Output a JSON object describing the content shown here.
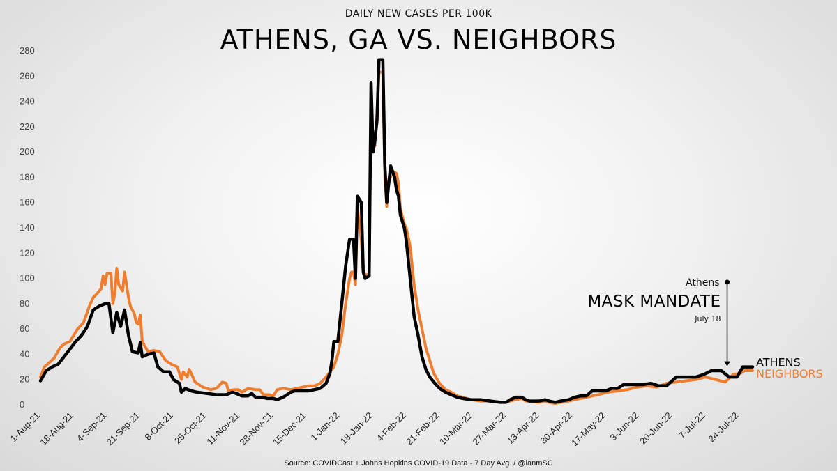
{
  "chart_data": {
    "type": "line",
    "subtitle": "DAILY NEW CASES PER 100K",
    "title": "ATHENS, GA VS. NEIGHBORS",
    "ylim": [
      0,
      280
    ],
    "yticks": [
      0,
      20,
      40,
      60,
      80,
      100,
      120,
      140,
      160,
      180,
      200,
      220,
      240,
      260,
      280
    ],
    "x_start": "1-Aug-21",
    "x_end": "31-Jul-22",
    "xticks": [
      "1-Aug-21",
      "18-Aug-21",
      "4-Sep-21",
      "21-Sep-21",
      "8-Oct-21",
      "25-Oct-21",
      "11-Nov-21",
      "28-Nov-21",
      "15-Dec-21",
      "1-Jan-22",
      "18-Jan-22",
      "4-Feb-22",
      "21-Feb-22",
      "10-Mar-22",
      "27-Mar-22",
      "13-Apr-22",
      "30-Apr-22",
      "17-May-22",
      "3-Jun-22",
      "20-Jun-22",
      "7-Jul-22",
      "24-Jul-22"
    ],
    "series": [
      {
        "name": "ATHENS",
        "color": "#000000",
        "points": [
          [
            0,
            19
          ],
          [
            3,
            27
          ],
          [
            6,
            30
          ],
          [
            9,
            32
          ],
          [
            12,
            38
          ],
          [
            15,
            44
          ],
          [
            18,
            50
          ],
          [
            21,
            55
          ],
          [
            24,
            62
          ],
          [
            27,
            75
          ],
          [
            30,
            78
          ],
          [
            33,
            80
          ],
          [
            35,
            80
          ],
          [
            37,
            57
          ],
          [
            39,
            73
          ],
          [
            41,
            62
          ],
          [
            43,
            75
          ],
          [
            45,
            55
          ],
          [
            47,
            42
          ],
          [
            50,
            41
          ],
          [
            51,
            49
          ],
          [
            52,
            38
          ],
          [
            55,
            40
          ],
          [
            58,
            41
          ],
          [
            60,
            30
          ],
          [
            63,
            26
          ],
          [
            66,
            26
          ],
          [
            68,
            20
          ],
          [
            71,
            17
          ],
          [
            72,
            10
          ],
          [
            74,
            13
          ],
          [
            77,
            11
          ],
          [
            80,
            10
          ],
          [
            85,
            9
          ],
          [
            90,
            8
          ],
          [
            95,
            8
          ],
          [
            98,
            10
          ],
          [
            100,
            9
          ],
          [
            103,
            7
          ],
          [
            106,
            7
          ],
          [
            108,
            9
          ],
          [
            110,
            6
          ],
          [
            113,
            6
          ],
          [
            116,
            5
          ],
          [
            119,
            5
          ],
          [
            121,
            4
          ],
          [
            124,
            6
          ],
          [
            126,
            8
          ],
          [
            128,
            10
          ],
          [
            130,
            11
          ],
          [
            134,
            11
          ],
          [
            137,
            11
          ],
          [
            140,
            12
          ],
          [
            143,
            13
          ],
          [
            146,
            17
          ],
          [
            148,
            25
          ],
          [
            149,
            35
          ],
          [
            150,
            50
          ],
          [
            152,
            50
          ],
          [
            154,
            80
          ],
          [
            156,
            110
          ],
          [
            158,
            131
          ],
          [
            160,
            131
          ],
          [
            161,
            100
          ],
          [
            162,
            165
          ],
          [
            164,
            160
          ],
          [
            165,
            105
          ],
          [
            166,
            100
          ],
          [
            168,
            102
          ],
          [
            169,
            255
          ],
          [
            170,
            200
          ],
          [
            171,
            210
          ],
          [
            172,
            225
          ],
          [
            173,
            273
          ],
          [
            175,
            273
          ],
          [
            176,
            190
          ],
          [
            177,
            160
          ],
          [
            178,
            175
          ],
          [
            179,
            189
          ],
          [
            181,
            180
          ],
          [
            182,
            170
          ],
          [
            183,
            165
          ],
          [
            184,
            150
          ],
          [
            186,
            140
          ],
          [
            187,
            130
          ],
          [
            189,
            100
          ],
          [
            191,
            70
          ],
          [
            193,
            55
          ],
          [
            195,
            38
          ],
          [
            197,
            28
          ],
          [
            199,
            22
          ],
          [
            201,
            18
          ],
          [
            204,
            13
          ],
          [
            207,
            10
          ],
          [
            210,
            8
          ],
          [
            213,
            6
          ],
          [
            216,
            5
          ],
          [
            220,
            4
          ],
          [
            225,
            4
          ],
          [
            230,
            3
          ],
          [
            235,
            2
          ],
          [
            238,
            2
          ],
          [
            240,
            4
          ],
          [
            243,
            6
          ],
          [
            246,
            6
          ],
          [
            248,
            4
          ],
          [
            250,
            3
          ],
          [
            255,
            3
          ],
          [
            258,
            4
          ],
          [
            260,
            3
          ],
          [
            263,
            2
          ],
          [
            266,
            3
          ],
          [
            270,
            4
          ],
          [
            273,
            6
          ],
          [
            276,
            7
          ],
          [
            279,
            7
          ],
          [
            282,
            11
          ],
          [
            285,
            11
          ],
          [
            289,
            11
          ],
          [
            292,
            13
          ],
          [
            295,
            13
          ],
          [
            298,
            16
          ],
          [
            303,
            16
          ],
          [
            308,
            16
          ],
          [
            312,
            17
          ],
          [
            316,
            15
          ],
          [
            320,
            15
          ],
          [
            325,
            22
          ],
          [
            330,
            22
          ],
          [
            335,
            22
          ],
          [
            339,
            24
          ],
          [
            343,
            27
          ],
          [
            348,
            27
          ],
          [
            352,
            22
          ],
          [
            356,
            22
          ],
          [
            359,
            30
          ],
          [
            364,
            30
          ]
        ]
      },
      {
        "name": "NEIGHBORS",
        "color": "#EE7D2F",
        "points": [
          [
            0,
            22
          ],
          [
            2,
            30
          ],
          [
            5,
            34
          ],
          [
            7,
            37
          ],
          [
            10,
            45
          ],
          [
            12,
            48
          ],
          [
            15,
            50
          ],
          [
            17,
            55
          ],
          [
            19,
            60
          ],
          [
            22,
            65
          ],
          [
            25,
            78
          ],
          [
            27,
            85
          ],
          [
            29,
            88
          ],
          [
            31,
            92
          ],
          [
            32,
            102
          ],
          [
            33,
            95
          ],
          [
            34,
            104
          ],
          [
            36,
            104
          ],
          [
            37,
            80
          ],
          [
            38,
            88
          ],
          [
            39,
            108
          ],
          [
            40,
            95
          ],
          [
            42,
            90
          ],
          [
            43,
            105
          ],
          [
            45,
            85
          ],
          [
            46,
            78
          ],
          [
            48,
            72
          ],
          [
            49,
            65
          ],
          [
            50,
            64
          ],
          [
            51,
            71
          ],
          [
            52,
            50
          ],
          [
            55,
            42
          ],
          [
            58,
            43
          ],
          [
            61,
            42
          ],
          [
            64,
            35
          ],
          [
            67,
            32
          ],
          [
            70,
            30
          ],
          [
            72,
            20
          ],
          [
            73,
            26
          ],
          [
            75,
            22
          ],
          [
            76,
            28
          ],
          [
            77,
            25
          ],
          [
            79,
            18
          ],
          [
            83,
            14
          ],
          [
            87,
            12
          ],
          [
            90,
            13
          ],
          [
            93,
            18
          ],
          [
            95,
            17
          ],
          [
            96,
            11
          ],
          [
            99,
            12
          ],
          [
            101,
            12
          ],
          [
            103,
            10
          ],
          [
            106,
            13
          ],
          [
            110,
            12
          ],
          [
            112,
            12
          ],
          [
            114,
            8
          ],
          [
            117,
            8
          ],
          [
            119,
            7
          ],
          [
            121,
            12
          ],
          [
            124,
            13
          ],
          [
            128,
            12
          ],
          [
            131,
            13
          ],
          [
            134,
            14
          ],
          [
            137,
            15
          ],
          [
            140,
            15
          ],
          [
            143,
            17
          ],
          [
            146,
            22
          ],
          [
            148,
            26
          ],
          [
            150,
            30
          ],
          [
            152,
            40
          ],
          [
            154,
            55
          ],
          [
            156,
            80
          ],
          [
            158,
            100
          ],
          [
            159,
            105
          ],
          [
            160,
            105
          ],
          [
            161,
            95
          ],
          [
            162,
            155
          ],
          [
            164,
            130
          ],
          [
            165,
            105
          ],
          [
            166,
            103
          ],
          [
            168,
            103
          ],
          [
            169,
            240
          ],
          [
            170,
            203
          ],
          [
            171,
            205
          ],
          [
            172,
            230
          ],
          [
            173,
            263
          ],
          [
            175,
            263
          ],
          [
            176,
            180
          ],
          [
            177,
            157
          ],
          [
            178,
            178
          ],
          [
            179,
            180
          ],
          [
            180,
            185
          ],
          [
            182,
            183
          ],
          [
            183,
            175
          ],
          [
            184,
            155
          ],
          [
            186,
            143
          ],
          [
            187,
            140
          ],
          [
            189,
            125
          ],
          [
            191,
            95
          ],
          [
            193,
            75
          ],
          [
            195,
            60
          ],
          [
            197,
            45
          ],
          [
            199,
            35
          ],
          [
            201,
            25
          ],
          [
            204,
            17
          ],
          [
            207,
            12
          ],
          [
            210,
            10
          ],
          [
            213,
            7
          ],
          [
            216,
            6
          ],
          [
            220,
            4
          ],
          [
            225,
            3
          ],
          [
            230,
            3
          ],
          [
            235,
            2
          ],
          [
            238,
            2
          ],
          [
            240,
            3
          ],
          [
            243,
            4
          ],
          [
            246,
            5
          ],
          [
            248,
            3
          ],
          [
            250,
            3
          ],
          [
            255,
            2
          ],
          [
            258,
            3
          ],
          [
            260,
            2
          ],
          [
            263,
            1
          ],
          [
            266,
            2
          ],
          [
            270,
            3
          ],
          [
            273,
            4
          ],
          [
            276,
            5
          ],
          [
            279,
            6
          ],
          [
            282,
            7
          ],
          [
            285,
            8
          ],
          [
            290,
            10
          ],
          [
            295,
            11
          ],
          [
            300,
            12
          ],
          [
            305,
            14
          ],
          [
            310,
            15
          ],
          [
            315,
            14
          ],
          [
            320,
            17
          ],
          [
            325,
            18
          ],
          [
            330,
            19
          ],
          [
            335,
            20
          ],
          [
            340,
            22
          ],
          [
            345,
            20
          ],
          [
            350,
            18
          ],
          [
            354,
            24
          ],
          [
            358,
            25
          ],
          [
            360,
            27
          ],
          [
            364,
            27
          ]
        ]
      }
    ],
    "annotation": {
      "label_top": "Athens",
      "label_main": "MASK MANDATE",
      "label_date": "July 18",
      "day": 351,
      "y_top": 97,
      "y_bottom": 30
    },
    "source": "Source: COVIDCast + Johns Hopkins COVID-19 Data - 7 Day Avg. / @ianmSC",
    "grid": false,
    "legend": "end-of-line labels"
  }
}
